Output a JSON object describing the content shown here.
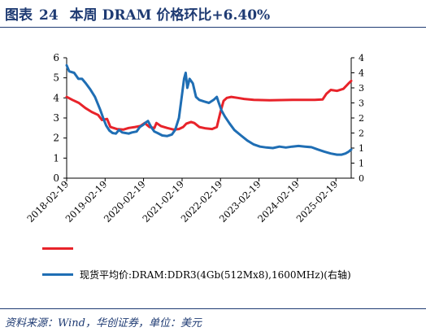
{
  "figure": {
    "label": "图表",
    "number": "24",
    "title": "本周 DRAM 价格环比+6.40%"
  },
  "source": "资料来源：Wind，华创证券，单位：美元",
  "colors": {
    "title": "#1f3b73",
    "axis": "#000000"
  },
  "chart_data": {
    "type": "line",
    "title": "本周 DRAM 价格环比+6.40%",
    "x_ticks": [
      "2018-02-19",
      "2019-02-19",
      "2020-02-19",
      "2021-02-19",
      "2022-02-19",
      "2023-02-19",
      "2024-02-19",
      "2025-02-19"
    ],
    "x_range": [
      "2018-02-19",
      "2025-07-14"
    ],
    "y_left": {
      "range": [
        0,
        6
      ],
      "ticks": [
        0,
        1,
        2,
        3,
        4,
        5,
        6
      ]
    },
    "y_right": {
      "range": [
        0,
        4
      ],
      "ticks": [
        0,
        0.5,
        1,
        1.5,
        2,
        2.5,
        3,
        3.5,
        4
      ],
      "tick_labels": [
        "0",
        "1",
        "1",
        "2",
        "2",
        "3",
        "3",
        "4",
        "4"
      ]
    },
    "grid": false,
    "legend_position": "bottom-left",
    "series": [
      {
        "name": "",
        "axis": "left",
        "color": "#e8232a",
        "points": [
          [
            "2018-02-19",
            4.05
          ],
          [
            "2018-04-15",
            3.9
          ],
          [
            "2018-06-15",
            3.75
          ],
          [
            "2018-08-15",
            3.5
          ],
          [
            "2018-10-15",
            3.3
          ],
          [
            "2018-12-15",
            3.15
          ],
          [
            "2019-01-20",
            2.9
          ],
          [
            "2019-03-10",
            2.95
          ],
          [
            "2019-04-10",
            2.55
          ],
          [
            "2019-06-10",
            2.45
          ],
          [
            "2019-08-10",
            2.42
          ],
          [
            "2019-10-01",
            2.5
          ],
          [
            "2019-12-01",
            2.55
          ],
          [
            "2020-01-20",
            2.6
          ],
          [
            "2020-03-01",
            2.75
          ],
          [
            "2020-04-15",
            2.55
          ],
          [
            "2020-06-01",
            2.5
          ],
          [
            "2020-06-20",
            2.75
          ],
          [
            "2020-08-01",
            2.6
          ],
          [
            "2020-10-01",
            2.5
          ],
          [
            "2020-12-01",
            2.42
          ],
          [
            "2021-01-20",
            2.45
          ],
          [
            "2021-03-01",
            2.55
          ],
          [
            "2021-04-01",
            2.72
          ],
          [
            "2021-05-15",
            2.8
          ],
          [
            "2021-06-15",
            2.75
          ],
          [
            "2021-08-01",
            2.55
          ],
          [
            "2021-10-01",
            2.48
          ],
          [
            "2021-12-01",
            2.45
          ],
          [
            "2022-01-15",
            2.55
          ],
          [
            "2022-02-19",
            3.3
          ],
          [
            "2022-03-20",
            3.85
          ],
          [
            "2022-04-20",
            4.0
          ],
          [
            "2022-06-01",
            4.05
          ],
          [
            "2022-08-01",
            4.0
          ],
          [
            "2022-10-01",
            3.95
          ],
          [
            "2023-01-01",
            3.9
          ],
          [
            "2023-06-01",
            3.88
          ],
          [
            "2024-01-01",
            3.9
          ],
          [
            "2024-08-01",
            3.9
          ],
          [
            "2024-10-15",
            3.92
          ],
          [
            "2024-11-20",
            4.2
          ],
          [
            "2025-01-01",
            4.4
          ],
          [
            "2025-03-01",
            4.35
          ],
          [
            "2025-05-01",
            4.45
          ],
          [
            "2025-06-15",
            4.7
          ],
          [
            "2025-07-14",
            4.85
          ]
        ]
      },
      {
        "name": "现货平均价:DRAM:DDR3(4Gb(512Mx8),1600MHz)(右轴)",
        "axis": "right",
        "color": "#1f6eb4",
        "points": [
          [
            "2018-02-19",
            3.75
          ],
          [
            "2018-03-15",
            3.55
          ],
          [
            "2018-05-01",
            3.5
          ],
          [
            "2018-06-10",
            3.3
          ],
          [
            "2018-07-15",
            3.3
          ],
          [
            "2018-08-20",
            3.15
          ],
          [
            "2018-10-01",
            2.95
          ],
          [
            "2018-11-15",
            2.7
          ],
          [
            "2019-01-01",
            2.3
          ],
          [
            "2019-02-01",
            2.0
          ],
          [
            "2019-03-01",
            1.75
          ],
          [
            "2019-04-01",
            1.58
          ],
          [
            "2019-05-01",
            1.5
          ],
          [
            "2019-06-01",
            1.48
          ],
          [
            "2019-07-01",
            1.6
          ],
          [
            "2019-08-01",
            1.52
          ],
          [
            "2019-09-01",
            1.5
          ],
          [
            "2019-10-01",
            1.48
          ],
          [
            "2019-11-01",
            1.52
          ],
          [
            "2019-12-15",
            1.55
          ],
          [
            "2020-01-15",
            1.7
          ],
          [
            "2020-02-19",
            1.78
          ],
          [
            "2020-03-10",
            1.85
          ],
          [
            "2020-04-01",
            1.9
          ],
          [
            "2020-05-01",
            1.7
          ],
          [
            "2020-06-01",
            1.55
          ],
          [
            "2020-07-01",
            1.5
          ],
          [
            "2020-08-15",
            1.42
          ],
          [
            "2020-10-01",
            1.4
          ],
          [
            "2020-11-15",
            1.45
          ],
          [
            "2020-12-15",
            1.6
          ],
          [
            "2021-01-20",
            2.0
          ],
          [
            "2021-02-19",
            2.8
          ],
          [
            "2021-03-10",
            3.3
          ],
          [
            "2021-03-25",
            3.5
          ],
          [
            "2021-04-10",
            3.0
          ],
          [
            "2021-05-01",
            3.3
          ],
          [
            "2021-06-01",
            3.15
          ],
          [
            "2021-07-01",
            2.7
          ],
          [
            "2021-08-01",
            2.6
          ],
          [
            "2021-09-15",
            2.55
          ],
          [
            "2021-11-01",
            2.5
          ],
          [
            "2021-12-15",
            2.6
          ],
          [
            "2022-01-15",
            2.7
          ],
          [
            "2022-02-01",
            2.52
          ],
          [
            "2022-03-01",
            2.25
          ],
          [
            "2022-04-01",
            2.05
          ],
          [
            "2022-05-15",
            1.82
          ],
          [
            "2022-07-01",
            1.6
          ],
          [
            "2022-09-01",
            1.42
          ],
          [
            "2022-11-01",
            1.25
          ],
          [
            "2023-01-01",
            1.12
          ],
          [
            "2023-03-01",
            1.05
          ],
          [
            "2023-05-01",
            1.02
          ],
          [
            "2023-07-01",
            1.0
          ],
          [
            "2023-09-01",
            1.05
          ],
          [
            "2023-11-01",
            1.02
          ],
          [
            "2024-01-01",
            1.05
          ],
          [
            "2024-03-01",
            1.07
          ],
          [
            "2024-05-01",
            1.05
          ],
          [
            "2024-07-01",
            1.03
          ],
          [
            "2024-09-01",
            0.95
          ],
          [
            "2024-11-01",
            0.88
          ],
          [
            "2025-01-01",
            0.82
          ],
          [
            "2025-03-01",
            0.78
          ],
          [
            "2025-04-15",
            0.78
          ],
          [
            "2025-05-20",
            0.82
          ],
          [
            "2025-06-20",
            0.88
          ],
          [
            "2025-07-14",
            0.95
          ]
        ]
      }
    ]
  }
}
